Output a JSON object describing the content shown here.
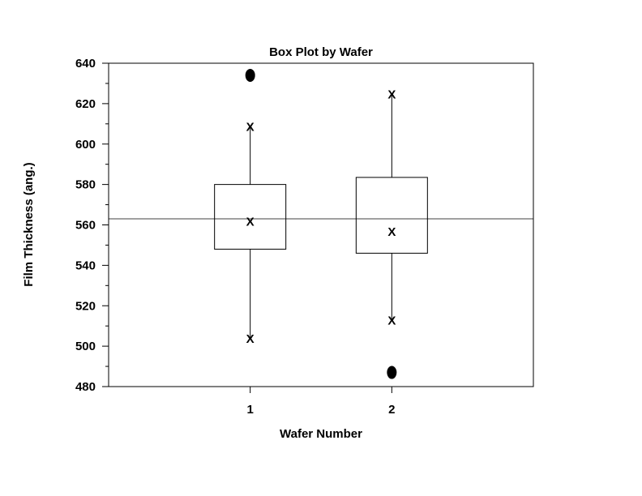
{
  "chart_data": {
    "type": "box",
    "title": "Box Plot by Wafer",
    "xlabel": "Wafer Number",
    "ylabel": "Film Thickness (ang.)",
    "categories": [
      "1",
      "2"
    ],
    "ylim": [
      480,
      640
    ],
    "xlim": [
      0,
      3
    ],
    "y_ticks": [
      480,
      500,
      520,
      540,
      560,
      580,
      600,
      620,
      640
    ],
    "y_minor_step": 10,
    "x_ticks": [
      1,
      2
    ],
    "reference_line": 563,
    "boxes": [
      {
        "category": "1",
        "q1": 548,
        "median": 562,
        "q3": 580,
        "whisker_low": 504,
        "whisker_high": 609,
        "outliers": [
          634
        ]
      },
      {
        "category": "2",
        "q1": 546,
        "median": 557,
        "q3": 583.5,
        "whisker_low": 513,
        "whisker_high": 625,
        "outliers": [
          487
        ]
      }
    ],
    "grid": false,
    "legend": "none"
  }
}
